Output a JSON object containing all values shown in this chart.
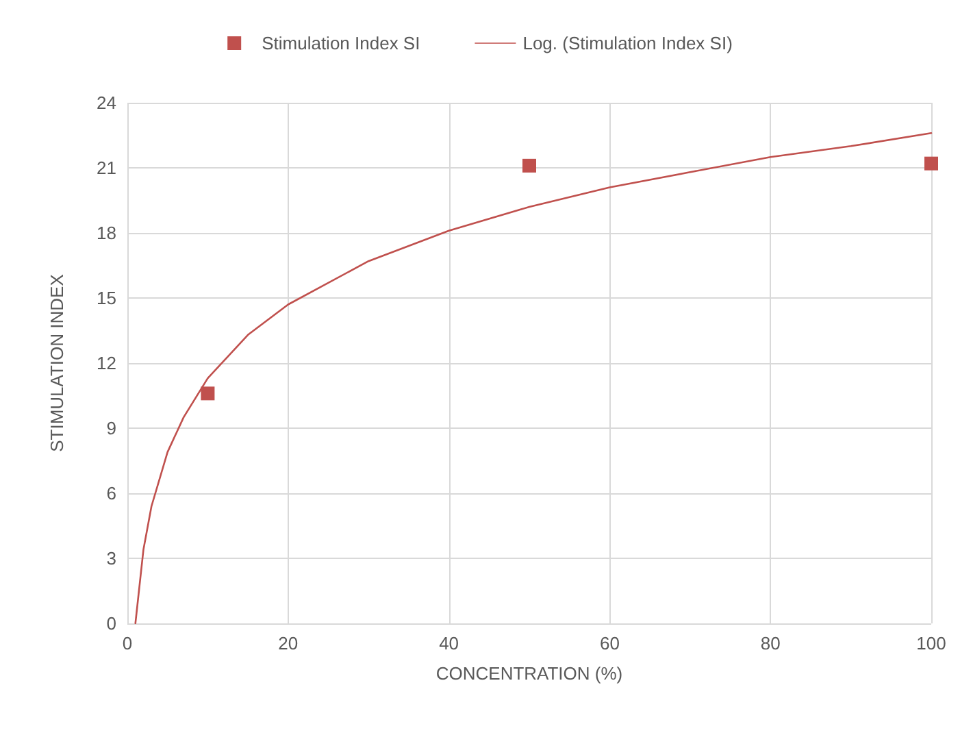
{
  "chart_data": {
    "type": "scatter",
    "xlabel": "CONCENTRATION (%)",
    "ylabel": "STIMULATION INDEX",
    "xlim": [
      0,
      100
    ],
    "xticks": [
      0,
      20,
      40,
      60,
      80,
      100
    ],
    "ylim": [
      0,
      24
    ],
    "yticks": [
      0,
      3,
      6,
      9,
      12,
      15,
      18,
      21,
      24
    ],
    "grid": true,
    "legend": "top",
    "series": [
      {
        "name": "Stimulation Index SI",
        "type": "scatter",
        "marker": "square",
        "color": "#c0504d",
        "x": [
          10,
          50,
          100
        ],
        "values": [
          10.6,
          21.1,
          21.2
        ]
      },
      {
        "name": "Log. (Stimulation Index SI)",
        "type": "line",
        "marker": "none",
        "line_style": "solid",
        "color": "#c0504d",
        "x": [
          1,
          2,
          3,
          5,
          7,
          10,
          15,
          20,
          30,
          40,
          50,
          60,
          70,
          80,
          90,
          100
        ],
        "values": [
          0,
          3.4,
          5.4,
          7.9,
          9.5,
          11.3,
          13.3,
          14.7,
          16.7,
          18.1,
          19.2,
          20.1,
          20.8,
          21.5,
          22.0,
          22.6
        ]
      }
    ]
  }
}
